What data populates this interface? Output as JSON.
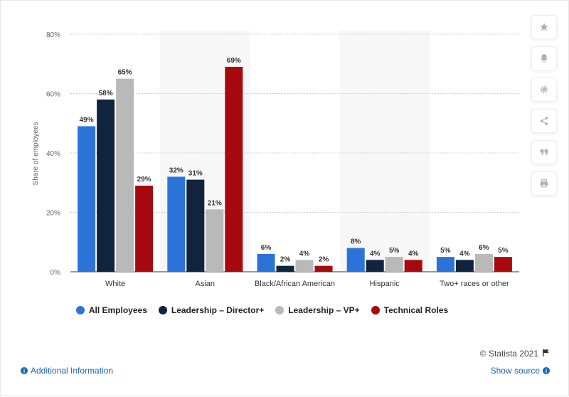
{
  "chart_data": {
    "type": "bar",
    "categories": [
      "White",
      "Asian",
      "Black/African American",
      "Hispanic",
      "Two+ races or other"
    ],
    "series": [
      {
        "name": "All Employees",
        "color": "#2b73d9",
        "values": [
          49,
          32,
          6,
          8,
          5
        ]
      },
      {
        "name": "Leadership – Director+",
        "color": "#10243f",
        "values": [
          58,
          31,
          2,
          4,
          4
        ]
      },
      {
        "name": "Leadership – VP+",
        "color": "#b9b9b9",
        "values": [
          65,
          21,
          4,
          5,
          6
        ]
      },
      {
        "name": "Technical Roles",
        "color": "#a8090f",
        "values": [
          29,
          69,
          2,
          4,
          5
        ]
      }
    ],
    "value_suffix": "%",
    "ylabel": "Share of employees",
    "ylim": [
      0,
      80
    ],
    "yticks": [
      0,
      20,
      40,
      60,
      80
    ],
    "ytick_labels": [
      "0%",
      "20%",
      "40%",
      "60%",
      "80%"
    ],
    "grid": true,
    "legend_position": "bottom"
  },
  "toolbar": {
    "icons": [
      "star-icon",
      "bell-icon",
      "gear-icon",
      "share-icon",
      "quote-icon",
      "print-icon"
    ]
  },
  "footer": {
    "credit": "© Statista 2021",
    "additional_info": "Additional Information",
    "show_source": "Show source"
  },
  "colors": {
    "link": "#1a66b8",
    "alt_band": "#f7f7f7"
  }
}
